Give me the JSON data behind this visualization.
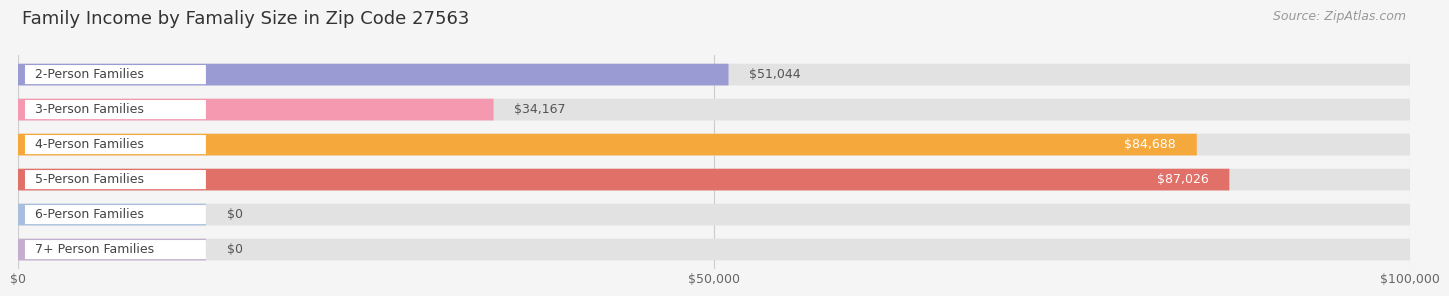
{
  "title": "Family Income by Famaliy Size in Zip Code 27563",
  "source": "Source: ZipAtlas.com",
  "categories": [
    "2-Person Families",
    "3-Person Families",
    "4-Person Families",
    "5-Person Families",
    "6-Person Families",
    "7+ Person Families"
  ],
  "values": [
    51044,
    34167,
    84688,
    87026,
    0,
    0
  ],
  "bar_colors": [
    "#9b9bd4",
    "#f499b0",
    "#f5a93c",
    "#e07068",
    "#a8bedd",
    "#c4aed0"
  ],
  "value_labels": [
    "$51,044",
    "$34,167",
    "$84,688",
    "$87,026",
    "$0",
    "$0"
  ],
  "value_inside": [
    false,
    false,
    true,
    true,
    false,
    false
  ],
  "xlim": [
    0,
    100000
  ],
  "xticks": [
    0,
    50000,
    100000
  ],
  "xticklabels": [
    "$0",
    "$50,000",
    "$100,000"
  ],
  "background_color": "#f5f5f5",
  "bar_bg_color": "#e2e2e2",
  "label_bg_color": "#ffffff",
  "title_fontsize": 13,
  "source_fontsize": 9,
  "label_fontsize": 9,
  "value_fontsize": 9,
  "tick_fontsize": 9
}
